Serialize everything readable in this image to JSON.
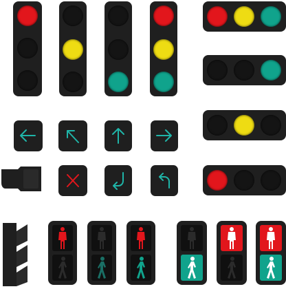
{
  "canvas": {
    "width": 416,
    "height": 416,
    "background": "#ffffff"
  },
  "colors": {
    "housing": "#1f1f1f",
    "off_lamp": "#141414",
    "red": "#e2161c",
    "yellow": "#eedc13",
    "green": "#10a38c",
    "arrow_cyan": "#1fb5a8"
  },
  "vertical_signals": [
    {
      "name": "red-on",
      "lamps": [
        "red",
        "off",
        "off"
      ]
    },
    {
      "name": "yellow-on",
      "lamps": [
        "off",
        "yellow",
        "off"
      ]
    },
    {
      "name": "green-on",
      "lamps": [
        "off",
        "off",
        "green"
      ]
    },
    {
      "name": "all-on",
      "lamps": [
        "red",
        "yellow",
        "green"
      ]
    }
  ],
  "horizontal_signals": [
    {
      "name": "all-on",
      "lamps": [
        "red",
        "yellow",
        "green"
      ]
    },
    {
      "name": "green-on",
      "lamps": [
        "off",
        "off",
        "green"
      ]
    },
    {
      "name": "yellow-on",
      "lamps": [
        "off",
        "yellow",
        "off"
      ]
    },
    {
      "name": "red-on",
      "lamps": [
        "red",
        "off",
        "off"
      ]
    }
  ],
  "arrow_signals": [
    {
      "icon": "arrow-left-icon"
    },
    {
      "icon": "arrow-up-left-icon"
    },
    {
      "icon": "arrow-up-icon"
    },
    {
      "icon": "arrow-right-icon"
    },
    {
      "icon": "cross-x-icon"
    },
    {
      "icon": "turn-down-left-icon"
    },
    {
      "icon": "turn-left-up-icon"
    }
  ],
  "pedestrian_signals": [
    {
      "name": "stop-on",
      "top": "red-figure",
      "bottom": "off"
    },
    {
      "name": "all-off",
      "top": "off",
      "bottom": "off"
    },
    {
      "name": "walk-on",
      "top": "off",
      "bottom": "green-figure"
    },
    {
      "name": "both-on",
      "top": "red-figure",
      "bottom": "green-figure"
    },
    {
      "name": "walk-bg",
      "top": "off",
      "bottom": "green-bg"
    },
    {
      "name": "stop-bg",
      "top": "red-bg",
      "bottom": "off"
    },
    {
      "name": "both-bg",
      "top": "red-bg",
      "bottom": "green-bg"
    }
  ]
}
